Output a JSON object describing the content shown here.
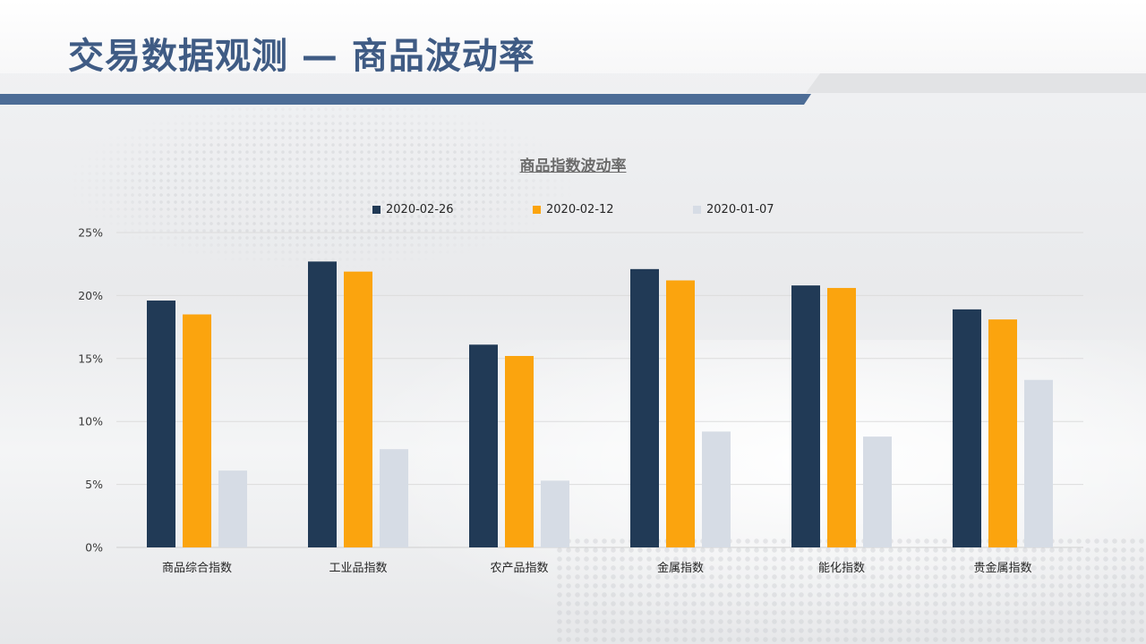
{
  "page": {
    "title": "交易数据观测 — 商品波动率"
  },
  "chart_data": {
    "type": "bar",
    "title": "商品指数波动率",
    "categories": [
      "商品综合指数",
      "工业品指数",
      "农产品指数",
      "金属指数",
      "能化指数",
      "贵金属指数"
    ],
    "series": [
      {
        "name": "2020-02-26",
        "color": "#213a56",
        "values": [
          19.6,
          22.7,
          16.1,
          22.1,
          20.8,
          18.9
        ]
      },
      {
        "name": "2020-02-12",
        "color": "#fba40e",
        "values": [
          18.5,
          21.9,
          15.2,
          21.2,
          20.6,
          18.1
        ]
      },
      {
        "name": "2020-01-07",
        "color": "#d6dce5",
        "values": [
          6.1,
          7.8,
          5.3,
          9.2,
          8.8,
          13.3
        ]
      }
    ],
    "yaxis": {
      "min": 0,
      "max": 25,
      "ticks": [
        0,
        5,
        10,
        15,
        20,
        25
      ],
      "tick_labels": [
        "0%",
        "5%",
        "10%",
        "15%",
        "20%",
        "25%"
      ]
    },
    "grid": true,
    "legend_position": "top"
  }
}
